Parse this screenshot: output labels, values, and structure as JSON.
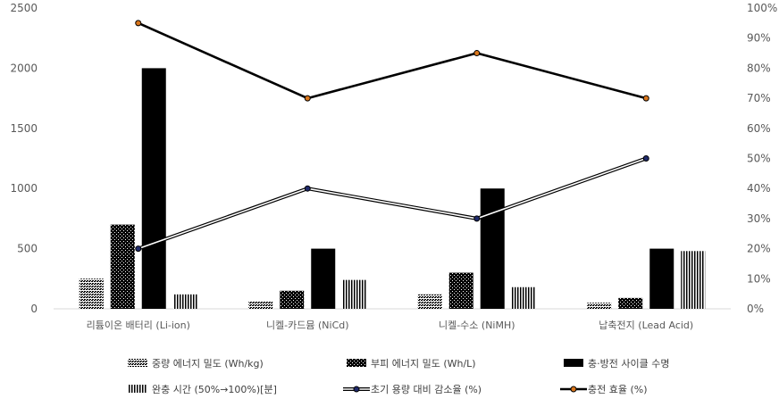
{
  "chart_data": {
    "type": "bar",
    "categories": [
      "리튬이온 배터리 (Li-ion)",
      "니켈-카드뮴 (NiCd)",
      "니켈-수소 (NiMH)",
      "납축전지 (Lead Acid)"
    ],
    "y_left": {
      "min": 0,
      "max": 2500,
      "ticks": [
        "0",
        "500",
        "1000",
        "1500",
        "2000",
        "2500"
      ]
    },
    "y_right": {
      "min": 0,
      "max": 100,
      "ticks": [
        "0%",
        "10%",
        "20%",
        "30%",
        "40%",
        "50%",
        "60%",
        "70%",
        "80%",
        "90%",
        "100%"
      ]
    },
    "bar_series": [
      {
        "name": "중량 에너지 밀도 (Wh/kg)",
        "values": [
          250,
          60,
          120,
          50
        ],
        "pattern": "dense-dots"
      },
      {
        "name": "부피 에너지 밀도 (Wh/L)",
        "values": [
          700,
          150,
          300,
          90
        ],
        "pattern": "checker"
      },
      {
        "name": "충·방전 사이클 수명",
        "values": [
          2000,
          500,
          1000,
          500
        ],
        "pattern": "solid"
      },
      {
        "name": "완충 시간 (50%→100%)[분]",
        "values": [
          120,
          240,
          180,
          480
        ],
        "pattern": "vertical-lines"
      }
    ],
    "line_series": [
      {
        "name": "초기 용량 대비 감소율 (%)",
        "values": [
          20,
          40,
          30,
          50
        ],
        "axis": "right",
        "style": "double-line",
        "marker_color": "#1f2a6b"
      },
      {
        "name": "충전 효율 (%)",
        "values": [
          95,
          70,
          85,
          70
        ],
        "axis": "right",
        "style": "solid",
        "marker_color": "#d9761c"
      }
    ],
    "legend_position": "bottom",
    "gridlines": false
  }
}
